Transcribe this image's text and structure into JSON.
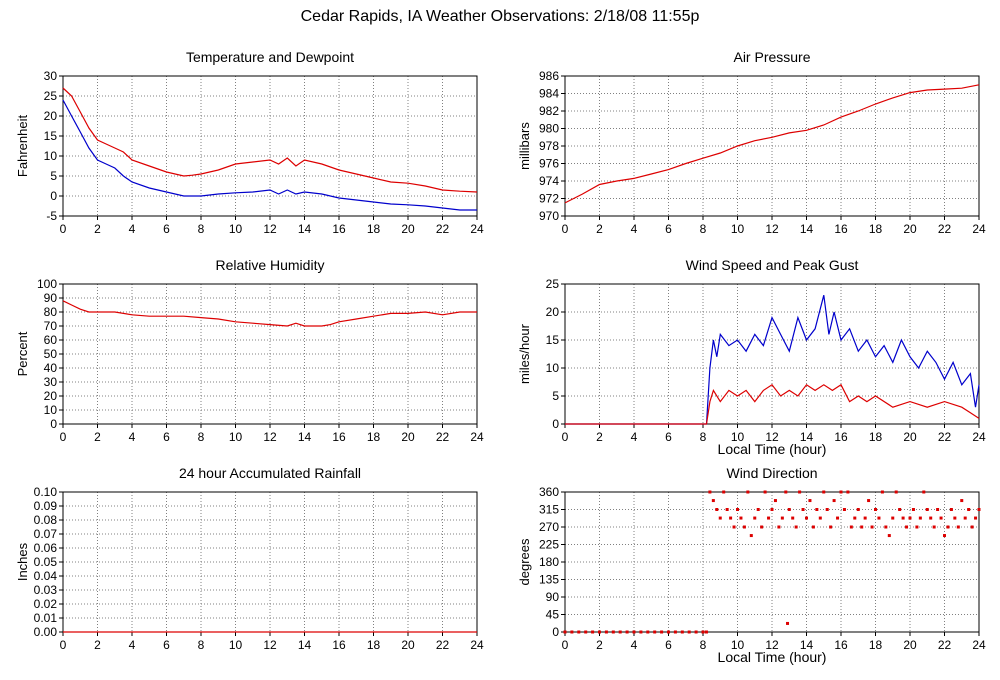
{
  "page": {
    "title": "Cedar Rapids, IA Weather Observations: 2/18/08 11:55p"
  },
  "colors": {
    "red": "#dd0000",
    "blue": "#0000cc",
    "grid": "#808080",
    "axis": "#000000"
  },
  "chart_data": [
    {
      "id": "temperature",
      "type": "line",
      "title": "Temperature and Dewpoint",
      "xlabel": "",
      "ylabel": "Fahrenheit",
      "xlim": [
        0,
        24
      ],
      "ylim": [
        -5,
        30
      ],
      "xticks": [
        0,
        2,
        4,
        6,
        8,
        10,
        12,
        14,
        16,
        18,
        20,
        22,
        24
      ],
      "yticks": [
        -5,
        0,
        5,
        10,
        15,
        20,
        25,
        30
      ],
      "grid": true,
      "series": [
        {
          "color": "#dd0000",
          "x": [
            0,
            0.5,
            1,
            1.5,
            2,
            2.5,
            3,
            3.5,
            4,
            5,
            6,
            7,
            7.5,
            8,
            9,
            10,
            11,
            12,
            12.5,
            13,
            13.5,
            14,
            15,
            16,
            17,
            18,
            19,
            20,
            21,
            22,
            23,
            24
          ],
          "y": [
            27,
            25,
            21,
            17,
            14,
            13,
            12,
            11,
            9,
            7.5,
            6,
            5,
            5.2,
            5.5,
            6.5,
            8,
            8.5,
            9,
            8,
            9.5,
            7.5,
            9,
            8,
            6.5,
            5.5,
            4.5,
            3.5,
            3.2,
            2.5,
            1.5,
            1.2,
            1
          ]
        },
        {
          "color": "#0000cc",
          "x": [
            0,
            0.5,
            1,
            1.5,
            2,
            2.5,
            3,
            3.5,
            4,
            5,
            6,
            7,
            8,
            9,
            10,
            11,
            12,
            12.5,
            13,
            13.5,
            14,
            15,
            16,
            17,
            18,
            19,
            20,
            21,
            22,
            23,
            24
          ],
          "y": [
            24,
            20,
            16,
            12,
            9,
            8,
            7,
            5,
            3.5,
            2,
            1,
            0,
            0,
            0.5,
            0.8,
            1,
            1.5,
            0.5,
            1.5,
            0.5,
            1,
            0.5,
            -0.5,
            -1,
            -1.5,
            -2,
            -2.2,
            -2.5,
            -3,
            -3.5,
            -3.5
          ]
        }
      ]
    },
    {
      "id": "pressure",
      "type": "line",
      "title": "Air Pressure",
      "xlabel": "",
      "ylabel": "millibars",
      "xlim": [
        0,
        24
      ],
      "ylim": [
        970,
        986
      ],
      "xticks": [
        0,
        2,
        4,
        6,
        8,
        10,
        12,
        14,
        16,
        18,
        20,
        22,
        24
      ],
      "yticks": [
        970,
        972,
        974,
        976,
        978,
        980,
        982,
        984,
        986
      ],
      "grid": true,
      "series": [
        {
          "color": "#dd0000",
          "x": [
            0,
            1,
            2,
            3,
            4,
            5,
            6,
            7,
            8,
            9,
            10,
            11,
            12,
            13,
            14,
            15,
            16,
            17,
            18,
            19,
            20,
            21,
            22,
            23,
            24
          ],
          "y": [
            971.5,
            972.5,
            973.6,
            974,
            974.3,
            974.8,
            975.3,
            976,
            976.6,
            977.2,
            978,
            978.6,
            979,
            979.5,
            979.8,
            980.4,
            981.3,
            982,
            982.8,
            983.5,
            984.1,
            984.4,
            984.5,
            984.6,
            985
          ]
        }
      ]
    },
    {
      "id": "humidity",
      "type": "line",
      "title": "Relative Humidity",
      "xlabel": "",
      "ylabel": "Percent",
      "xlim": [
        0,
        24
      ],
      "ylim": [
        0,
        100
      ],
      "xticks": [
        0,
        2,
        4,
        6,
        8,
        10,
        12,
        14,
        16,
        18,
        20,
        22,
        24
      ],
      "yticks": [
        0,
        10,
        20,
        30,
        40,
        50,
        60,
        70,
        80,
        90,
        100
      ],
      "grid": true,
      "series": [
        {
          "color": "#dd0000",
          "x": [
            0,
            0.5,
            1,
            1.5,
            2,
            3,
            4,
            5,
            6,
            7,
            8,
            9,
            10,
            11,
            12,
            13,
            13.5,
            14,
            15,
            15.5,
            16,
            17,
            18,
            19,
            20,
            21,
            22,
            23,
            24
          ],
          "y": [
            88,
            85,
            82,
            80,
            80,
            80,
            78,
            77,
            77,
            77,
            76,
            75,
            73,
            72,
            71,
            70,
            72,
            70,
            70,
            71,
            73,
            75,
            77,
            79,
            79,
            80,
            78,
            80,
            80
          ]
        }
      ]
    },
    {
      "id": "wind-speed",
      "type": "line",
      "title": "Wind Speed and Peak Gust",
      "xlabel": "Local Time (hour)",
      "ylabel": "miles/hour",
      "xlim": [
        0,
        24
      ],
      "ylim": [
        0,
        25
      ],
      "xticks": [
        0,
        2,
        4,
        6,
        8,
        10,
        12,
        14,
        16,
        18,
        20,
        22,
        24
      ],
      "yticks": [
        0,
        5,
        10,
        15,
        20,
        25
      ],
      "grid": true,
      "series": [
        {
          "color": "#0000cc",
          "x": [
            0,
            8.2,
            8.4,
            8.6,
            8.8,
            9,
            9.5,
            10,
            10.5,
            11,
            11.5,
            12,
            12.5,
            13,
            13.5,
            14,
            14.5,
            15,
            15.3,
            15.6,
            16,
            16.5,
            17,
            17.5,
            18,
            18.5,
            19,
            19.5,
            20,
            20.5,
            21,
            21.5,
            22,
            22.5,
            23,
            23.5,
            23.8,
            24
          ],
          "y": [
            0,
            0,
            10,
            15,
            12,
            16,
            14,
            15,
            13,
            16,
            14,
            19,
            16,
            13,
            19,
            15,
            17,
            23,
            16,
            20,
            15,
            17,
            13,
            15,
            12,
            14,
            11,
            15,
            12,
            10,
            13,
            11,
            8,
            11,
            7,
            9,
            3,
            7
          ]
        },
        {
          "color": "#dd0000",
          "x": [
            0,
            8.2,
            8.4,
            8.6,
            9,
            9.5,
            10,
            10.5,
            11,
            11.5,
            12,
            12.5,
            13,
            13.5,
            14,
            14.5,
            15,
            15.5,
            16,
            16.5,
            17,
            17.5,
            18,
            19,
            20,
            21,
            22,
            23,
            23.5,
            24
          ],
          "y": [
            0,
            0,
            4,
            6,
            4,
            6,
            5,
            6,
            4,
            6,
            7,
            5,
            6,
            5,
            7,
            6,
            7,
            6,
            7,
            4,
            5,
            4,
            5,
            3,
            4,
            3,
            4,
            3,
            2,
            1
          ]
        }
      ]
    },
    {
      "id": "rainfall",
      "type": "line",
      "title": "24 hour Accumulated Rainfall",
      "xlabel": "",
      "ylabel": "Inches",
      "xlim": [
        0,
        24
      ],
      "ylim": [
        0,
        0.1
      ],
      "xticks": [
        0,
        2,
        4,
        6,
        8,
        10,
        12,
        14,
        16,
        18,
        20,
        22,
        24
      ],
      "yticks": [
        "0.00",
        "0.01",
        "0.02",
        "0.03",
        "0.04",
        "0.05",
        "0.06",
        "0.07",
        "0.08",
        "0.09",
        "0.10"
      ],
      "grid": true,
      "series": [
        {
          "color": "#dd0000",
          "x": [
            0,
            24
          ],
          "y": [
            0,
            0
          ]
        }
      ]
    },
    {
      "id": "wind-direction",
      "type": "scatter",
      "title": "Wind Direction",
      "xlabel": "Local Time (hour)",
      "ylabel": "degrees",
      "xlim": [
        0,
        24
      ],
      "ylim": [
        0,
        360
      ],
      "xticks": [
        0,
        2,
        4,
        6,
        8,
        10,
        12,
        14,
        16,
        18,
        20,
        22,
        24
      ],
      "yticks": [
        0,
        45,
        90,
        135,
        180,
        225,
        270,
        315,
        360
      ],
      "grid": true,
      "series": [
        {
          "color": "#dd0000",
          "x": [
            0,
            0.4,
            0.8,
            1.2,
            1.6,
            2,
            2.4,
            2.8,
            3.2,
            3.6,
            4,
            4.4,
            4.8,
            5.2,
            5.6,
            6,
            6.4,
            6.8,
            7.2,
            7.6,
            8,
            8.2,
            8.4,
            8.6,
            8.8,
            9,
            9.2,
            9.4,
            9.6,
            9.8,
            10,
            10.2,
            10.4,
            10.6,
            10.8,
            11,
            11.2,
            11.4,
            11.6,
            11.8,
            12,
            12.2,
            12.4,
            12.6,
            12.8,
            12.9,
            13,
            13.2,
            13.4,
            13.6,
            13.8,
            14,
            14.2,
            14.4,
            14.6,
            14.8,
            15,
            15.2,
            15.4,
            15.6,
            15.8,
            16,
            16.2,
            16.4,
            16.6,
            16.8,
            17,
            17.2,
            17.4,
            17.6,
            17.8,
            18,
            18.2,
            18.4,
            18.6,
            18.8,
            19,
            19.2,
            19.4,
            19.6,
            19.8,
            20,
            20.2,
            20.4,
            20.6,
            20.8,
            21,
            21.2,
            21.4,
            21.6,
            21.8,
            22,
            22.2,
            22.4,
            22.6,
            22.8,
            23,
            23.2,
            23.4,
            23.6,
            23.8,
            24
          ],
          "y": [
            0,
            0,
            0,
            0,
            0,
            0,
            0,
            0,
            0,
            0,
            0,
            0,
            0,
            0,
            0,
            0,
            0,
            0,
            0,
            0,
            0,
            0,
            360,
            338,
            315,
            293,
            360,
            315,
            293,
            270,
            315,
            293,
            270,
            360,
            248,
            293,
            315,
            270,
            360,
            293,
            315,
            338,
            270,
            293,
            360,
            22,
            315,
            293,
            270,
            360,
            315,
            293,
            338,
            270,
            315,
            293,
            360,
            315,
            270,
            338,
            293,
            360,
            315,
            360,
            270,
            293,
            315,
            270,
            293,
            338,
            270,
            315,
            293,
            360,
            270,
            248,
            293,
            360,
            315,
            293,
            270,
            293,
            315,
            270,
            293,
            360,
            315,
            293,
            270,
            315,
            293,
            248,
            270,
            315,
            293,
            270,
            338,
            293,
            315,
            270,
            293,
            315
          ]
        }
      ]
    }
  ]
}
